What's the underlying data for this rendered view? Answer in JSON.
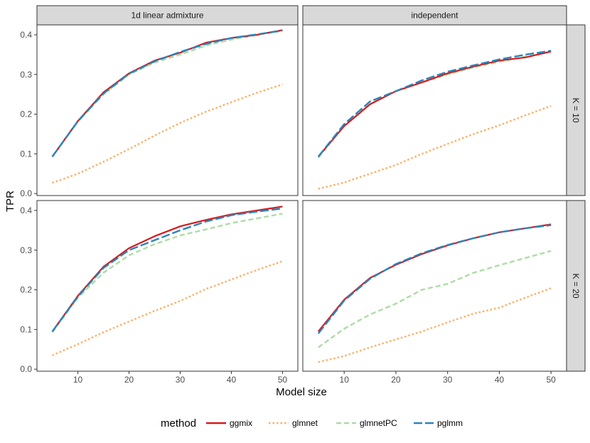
{
  "chart_data": {
    "type": "line",
    "xlabel": "Model size",
    "ylabel": "TPR",
    "xlim": [
      2,
      53
    ],
    "ylim": [
      -0.005,
      0.425
    ],
    "x_ticks": [
      10,
      20,
      30,
      40,
      50
    ],
    "y_ticks": [
      0.0,
      0.1,
      0.2,
      0.3,
      0.4
    ],
    "x_tick_labels": [
      "10",
      "20",
      "30",
      "40",
      "50"
    ],
    "y_tick_labels": [
      "0.0",
      "0.1",
      "0.2",
      "0.3",
      "0.4"
    ],
    "column_facets": [
      "1d linear admixture",
      "independent"
    ],
    "row_facets": [
      "K = 10",
      "K = 20"
    ],
    "grid": false,
    "legend": {
      "title": "method",
      "position": "bottom",
      "entries": [
        {
          "name": "ggmix",
          "color": "#d7191c",
          "dash": "solid"
        },
        {
          "name": "glmnet",
          "color": "#fdae61",
          "dash": "dotted"
        },
        {
          "name": "glmnetPC",
          "color": "#abdda4",
          "dash": "dashed"
        },
        {
          "name": "pglmm",
          "color": "#2b83ba",
          "dash": "longdash"
        }
      ]
    },
    "x": [
      5,
      10,
      15,
      20,
      25,
      30,
      35,
      40,
      45,
      50
    ],
    "panels": [
      {
        "col": "1d linear admixture",
        "row": "K = 10",
        "series": [
          {
            "name": "ggmix",
            "values": [
              0.093,
              0.183,
              0.255,
              0.303,
              0.335,
              0.355,
              0.38,
              0.392,
              0.4,
              0.412
            ]
          },
          {
            "name": "glmnet",
            "values": [
              0.027,
              0.05,
              0.08,
              0.112,
              0.146,
              0.178,
              0.206,
              0.23,
              0.254,
              0.275
            ]
          },
          {
            "name": "glmnetPC",
            "values": [
              0.093,
              0.182,
              0.25,
              0.3,
              0.33,
              0.35,
              0.373,
              0.388,
              0.4,
              0.41
            ]
          },
          {
            "name": "pglmm",
            "values": [
              0.093,
              0.182,
              0.252,
              0.302,
              0.333,
              0.357,
              0.377,
              0.392,
              0.401,
              0.411
            ]
          }
        ]
      },
      {
        "col": "independent",
        "row": "K = 10",
        "series": [
          {
            "name": "ggmix",
            "values": [
              0.093,
              0.17,
              0.225,
              0.258,
              0.28,
              0.303,
              0.32,
              0.335,
              0.343,
              0.358
            ]
          },
          {
            "name": "glmnet",
            "values": [
              0.012,
              0.028,
              0.05,
              0.072,
              0.1,
              0.125,
              0.15,
              0.172,
              0.197,
              0.221
            ]
          },
          {
            "name": "glmnetPC",
            "values": [
              0.09,
              0.172,
              0.225,
              0.258,
              0.28,
              0.3,
              0.318,
              0.332,
              0.345,
              0.358
            ]
          },
          {
            "name": "pglmm",
            "values": [
              0.093,
              0.175,
              0.232,
              0.258,
              0.285,
              0.307,
              0.323,
              0.338,
              0.35,
              0.36
            ]
          }
        ]
      },
      {
        "col": "1d linear admixture",
        "row": "K = 20",
        "series": [
          {
            "name": "ggmix",
            "values": [
              0.095,
              0.185,
              0.258,
              0.305,
              0.335,
              0.36,
              0.376,
              0.39,
              0.4,
              0.41
            ]
          },
          {
            "name": "glmnet",
            "values": [
              0.035,
              0.063,
              0.093,
              0.12,
              0.147,
              0.172,
              0.202,
              0.226,
              0.25,
              0.272
            ]
          },
          {
            "name": "glmnetPC",
            "values": [
              0.093,
              0.18,
              0.243,
              0.287,
              0.315,
              0.337,
              0.352,
              0.368,
              0.38,
              0.392
            ]
          },
          {
            "name": "pglmm",
            "values": [
              0.095,
              0.183,
              0.255,
              0.3,
              0.325,
              0.35,
              0.372,
              0.388,
              0.397,
              0.405
            ]
          }
        ]
      },
      {
        "col": "independent",
        "row": "K = 20",
        "series": [
          {
            "name": "ggmix",
            "values": [
              0.095,
              0.175,
              0.23,
              0.263,
              0.29,
              0.312,
              0.33,
              0.345,
              0.355,
              0.365
            ]
          },
          {
            "name": "glmnet",
            "values": [
              0.018,
              0.033,
              0.055,
              0.075,
              0.095,
              0.118,
              0.14,
              0.155,
              0.18,
              0.204
            ]
          },
          {
            "name": "glmnetPC",
            "values": [
              0.055,
              0.102,
              0.138,
              0.165,
              0.2,
              0.215,
              0.243,
              0.262,
              0.28,
              0.298
            ]
          },
          {
            "name": "pglmm",
            "values": [
              0.09,
              0.173,
              0.228,
              0.265,
              0.292,
              0.313,
              0.33,
              0.345,
              0.355,
              0.363
            ]
          }
        ]
      }
    ]
  }
}
